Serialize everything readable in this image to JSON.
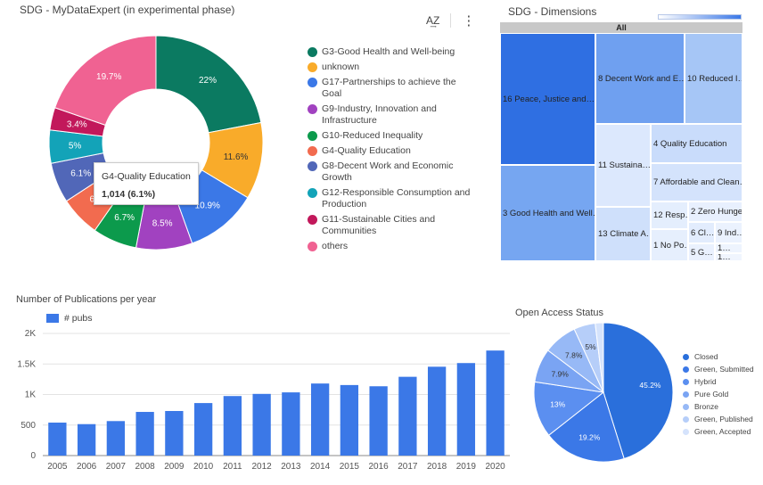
{
  "panels": {
    "donut_title": "SDG - MyDataExpert (in experimental phase)",
    "treemap_title": "SDG - Dimensions",
    "pubs_title": "Number of Publications per year",
    "oa_title": "Open Access Status"
  },
  "toolbar": {
    "sort_icon_label": "A͢Z",
    "more_icon_label": "⋮"
  },
  "tooltip": {
    "label": "G4-Quality Education",
    "value": "1,014 (6.1%)"
  },
  "colors": {
    "accent": "#3b78e7"
  },
  "chart_data": [
    {
      "type": "pie",
      "title": "SDG - MyDataExpert (in experimental phase)",
      "categories": [
        "G3-Good Health and Well-being",
        "unknown",
        "G17-Partnerships to achieve the Goal",
        "G9-Industry, Innovation and Infrastructure",
        "G10-Reduced Inequality",
        "G4-Quality Education",
        "G8-Decent Work and Economic Growth",
        "G12-Responsible Consumption and Production",
        "G11-Sustainable Cities and Communities",
        "others"
      ],
      "values": [
        22,
        11.6,
        10.9,
        8.5,
        6.7,
        6.1,
        6.1,
        5,
        3.4,
        19.7
      ],
      "labels": [
        "22%",
        "11.6%",
        "10.9%",
        "8.5%",
        "6.7%",
        "6.…",
        "6.1%",
        "5%",
        "3.4%",
        "19.7%"
      ],
      "colors": [
        "#0b7a61",
        "#f9ab2a",
        "#3b78e7",
        "#a142c0",
        "#0c9a4c",
        "#f26b4f",
        "#5167b8",
        "#13a3b8",
        "#c2185b",
        "#f06292"
      ],
      "legend": "right"
    },
    {
      "type": "heatmap",
      "title": "SDG - Dimensions",
      "root_label": "All",
      "cells": [
        "16 Peace, Justice and…",
        "8 Decent Work and E…",
        "10 Reduced I…",
        "4 Quality Education",
        "11 Sustaina…",
        "7 Affordable and Clean…",
        "3 Good Health and Well…",
        "13 Climate A…",
        "12 Resp…",
        "2 Zero Hunger",
        "6 Cl…",
        "9 Ind…",
        "1 No Po…",
        "5 G…",
        "1…",
        "1…"
      ]
    },
    {
      "type": "bar",
      "title": "Number of Publications per year",
      "categories": [
        "2005",
        "2006",
        "2007",
        "2008",
        "2009",
        "2010",
        "2011",
        "2012",
        "2013",
        "2014",
        "2015",
        "2016",
        "2017",
        "2018",
        "2019",
        "2020"
      ],
      "series": [
        {
          "name": "# pubs",
          "values": [
            540,
            515,
            565,
            715,
            730,
            860,
            975,
            1010,
            1035,
            1180,
            1155,
            1135,
            1290,
            1455,
            1515,
            1720
          ]
        }
      ],
      "ylim": [
        0,
        2000
      ],
      "yticks": [
        "0",
        "500",
        "1K",
        "1.5K",
        "2K"
      ],
      "grid": true,
      "legend": "top-left"
    },
    {
      "type": "pie",
      "title": "Open Access Status",
      "categories": [
        "Closed",
        "Green, Submitted",
        "Hybrid",
        "Pure Gold",
        "Bronze",
        "Green, Published",
        "Green, Accepted"
      ],
      "values": [
        45.2,
        19.2,
        13,
        7.9,
        7.8,
        5,
        1.9
      ],
      "labels": [
        "45.2%",
        "19.2%",
        "13%",
        "7.9%",
        "7.8%",
        "5%",
        ""
      ],
      "colors": [
        "#2a6fdb",
        "#3b78e7",
        "#5b8ff0",
        "#7aa4f3",
        "#97b9f6",
        "#b6cef9",
        "#d5e3fc"
      ],
      "legend": "right"
    }
  ]
}
